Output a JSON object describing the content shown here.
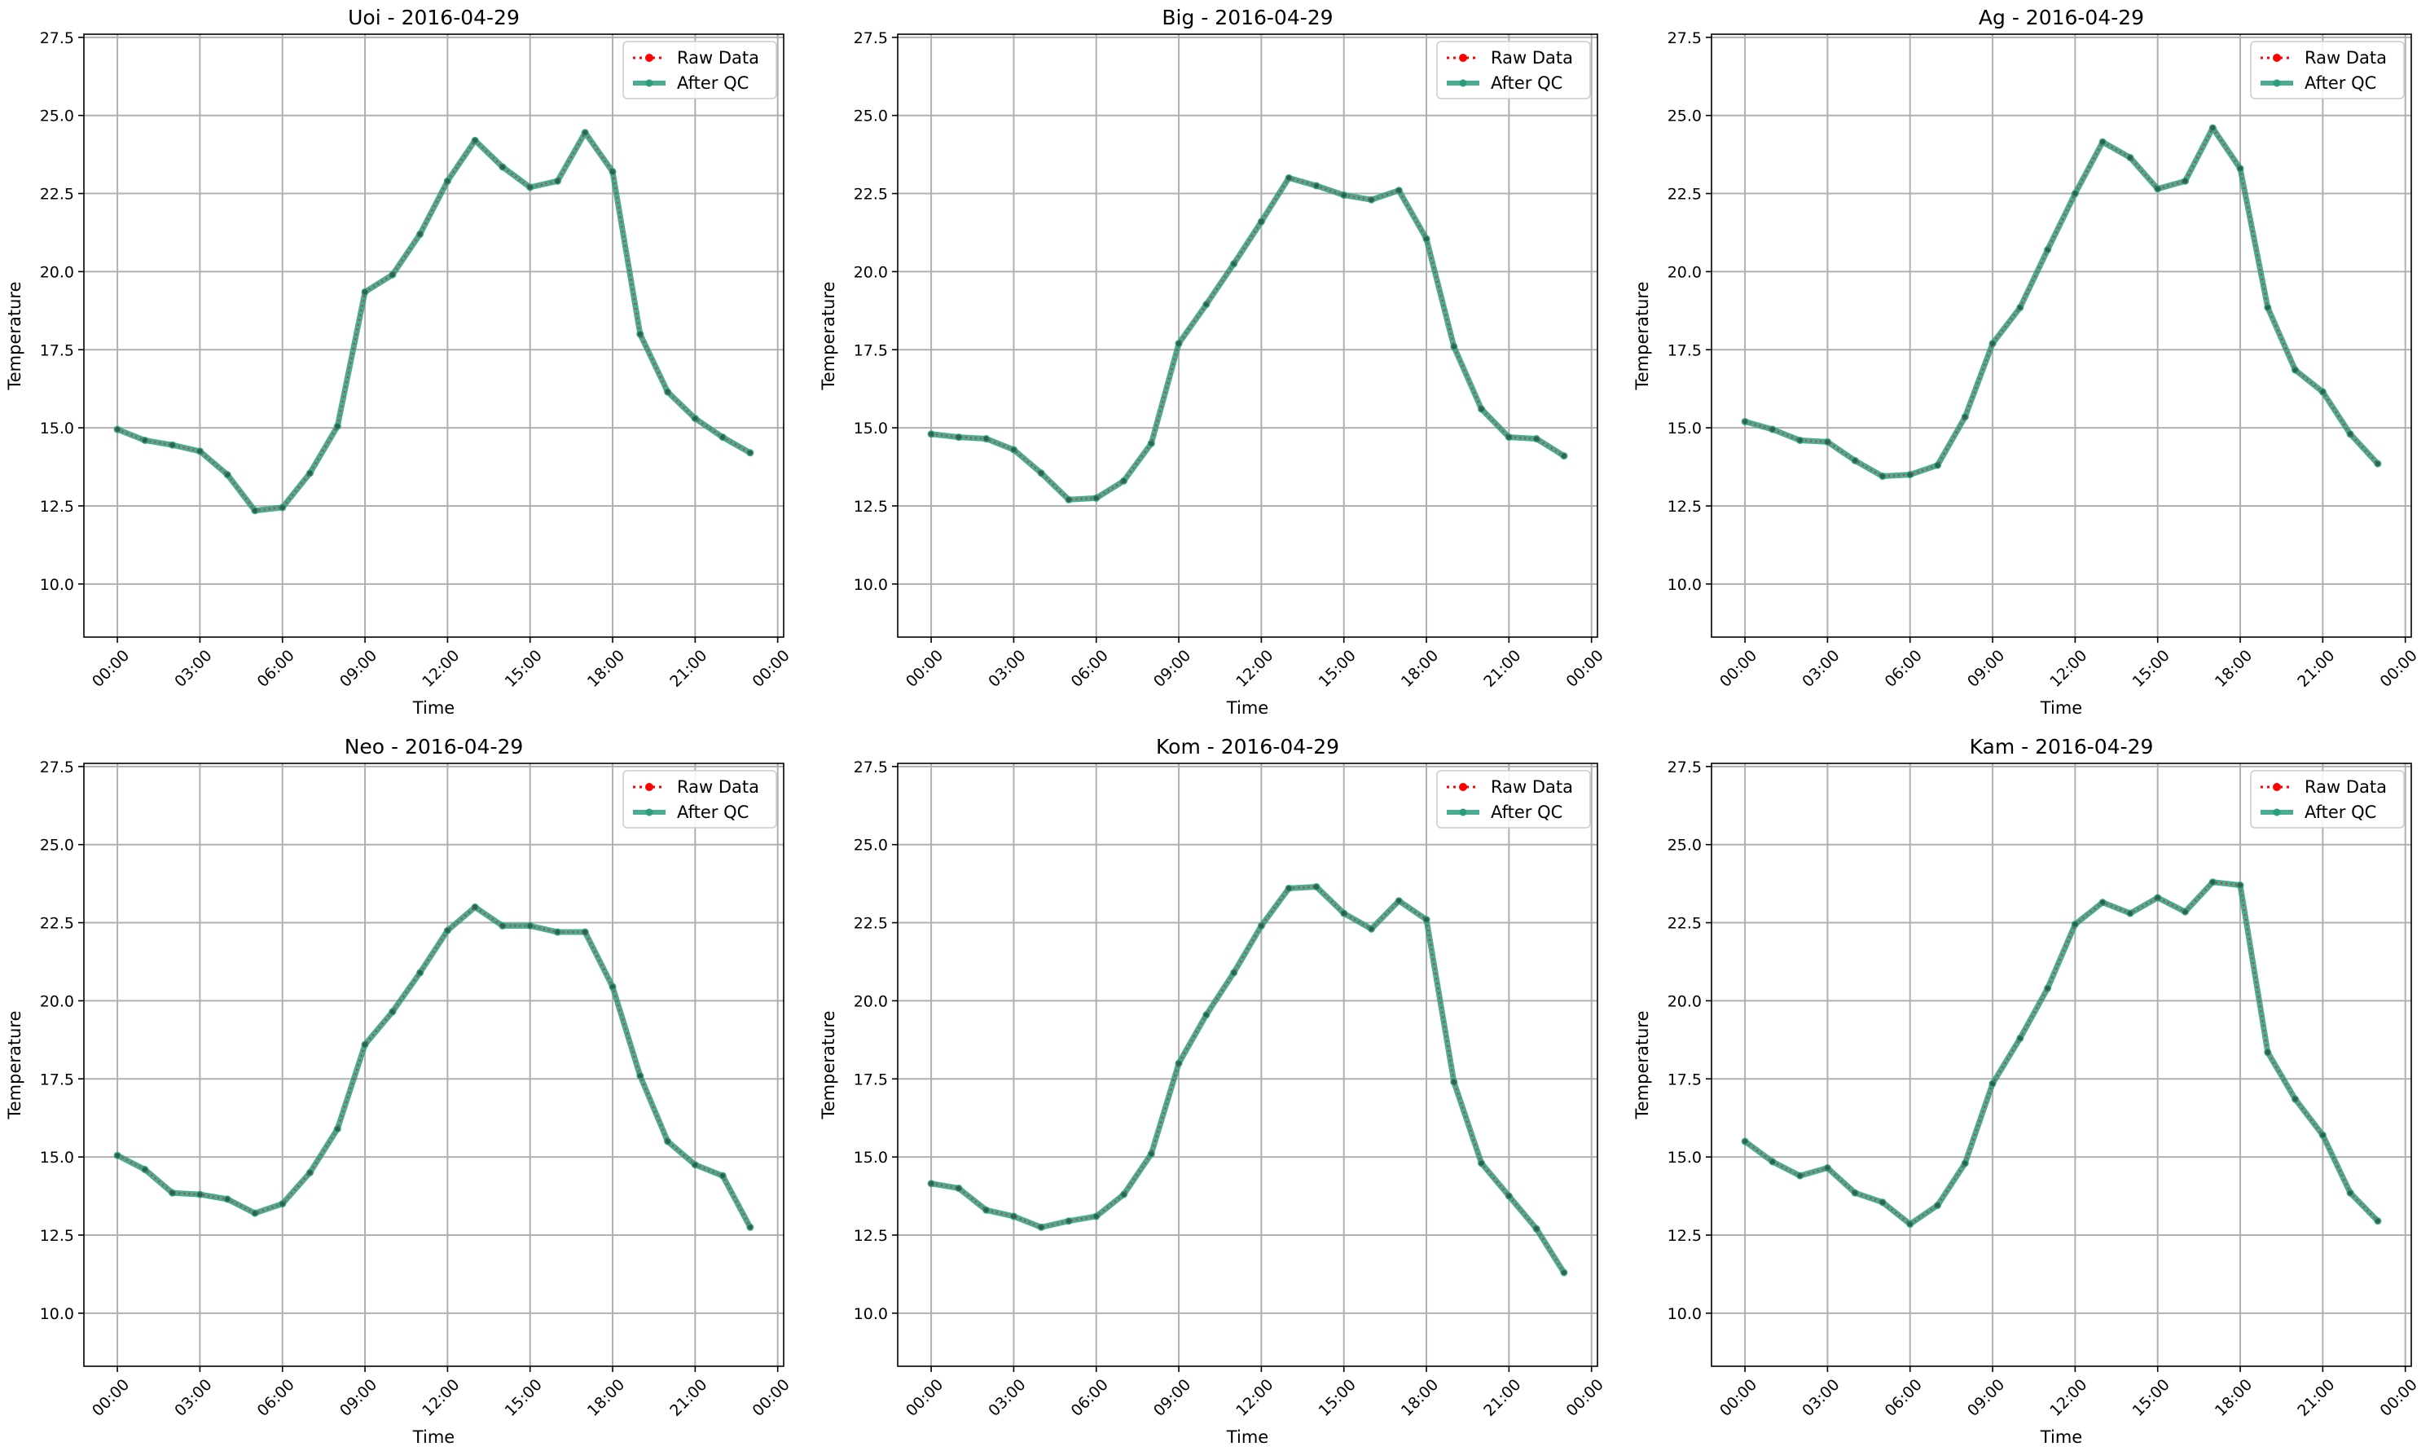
{
  "chart_data": [
    {
      "type": "line",
      "title": "Uoi - 2016-04-29",
      "xlabel": "Time",
      "ylabel": "Temperature",
      "ylim": [
        8.3,
        27.6
      ],
      "xlim": [
        "2016-04-28 22:47",
        "2016-04-30 00:13"
      ],
      "x_tick_labels": [
        "00:00",
        "03:00",
        "06:00",
        "09:00",
        "12:00",
        "15:00",
        "18:00",
        "21:00",
        "00:00"
      ],
      "y_tick_labels": [
        "10.0",
        "12.5",
        "15.0",
        "17.5",
        "20.0",
        "22.5",
        "25.0",
        "27.5"
      ],
      "y_ticks": [
        10.0,
        12.5,
        15.0,
        17.5,
        20.0,
        22.5,
        25.0,
        27.5
      ],
      "grid": true,
      "legend_position": "top-right",
      "x": [
        "00:00",
        "01:00",
        "02:00",
        "03:00",
        "04:00",
        "05:00",
        "06:00",
        "07:00",
        "08:00",
        "09:00",
        "10:00",
        "11:00",
        "12:00",
        "13:00",
        "14:00",
        "15:00",
        "16:00",
        "17:00",
        "18:00",
        "19:00",
        "20:00",
        "21:00",
        "22:00",
        "23:00"
      ],
      "series": [
        {
          "name": "Raw Data",
          "color": "#ff0000",
          "style": "dotted",
          "values": [
            14.95,
            14.6,
            14.45,
            14.25,
            13.5,
            12.35,
            12.45,
            13.55,
            15.05,
            19.35,
            19.9,
            21.2,
            22.9,
            24.2,
            23.35,
            22.7,
            22.9,
            24.45,
            23.2,
            18.0,
            16.15,
            15.3,
            14.7,
            14.2
          ]
        },
        {
          "name": "After QC",
          "color": "#2a9d7f",
          "style": "solid",
          "values": [
            14.95,
            14.6,
            14.45,
            14.25,
            13.5,
            12.35,
            12.45,
            13.55,
            15.05,
            19.35,
            19.9,
            21.2,
            22.9,
            24.2,
            23.35,
            22.7,
            22.9,
            24.45,
            23.2,
            18.0,
            16.15,
            15.3,
            14.7,
            14.2
          ]
        }
      ]
    },
    {
      "type": "line",
      "title": "Big - 2016-04-29",
      "xlabel": "Time",
      "ylabel": "Temperature",
      "ylim": [
        8.3,
        27.6
      ],
      "xlim": [
        "2016-04-28 22:47",
        "2016-04-30 00:13"
      ],
      "x_tick_labels": [
        "00:00",
        "03:00",
        "06:00",
        "09:00",
        "12:00",
        "15:00",
        "18:00",
        "21:00",
        "00:00"
      ],
      "y_tick_labels": [
        "10.0",
        "12.5",
        "15.0",
        "17.5",
        "20.0",
        "22.5",
        "25.0",
        "27.5"
      ],
      "y_ticks": [
        10.0,
        12.5,
        15.0,
        17.5,
        20.0,
        22.5,
        25.0,
        27.5
      ],
      "grid": true,
      "legend_position": "top-right",
      "x": [
        "00:00",
        "01:00",
        "02:00",
        "03:00",
        "04:00",
        "05:00",
        "06:00",
        "07:00",
        "08:00",
        "09:00",
        "10:00",
        "11:00",
        "12:00",
        "13:00",
        "14:00",
        "15:00",
        "16:00",
        "17:00",
        "18:00",
        "19:00",
        "20:00",
        "21:00",
        "22:00",
        "23:00"
      ],
      "series": [
        {
          "name": "Raw Data",
          "color": "#ff0000",
          "style": "dotted",
          "values": [
            14.8,
            14.7,
            14.65,
            14.3,
            13.55,
            12.7,
            12.75,
            13.3,
            14.5,
            17.7,
            18.95,
            20.25,
            21.6,
            23.0,
            22.75,
            22.45,
            22.3,
            22.6,
            21.05,
            17.6,
            15.6,
            14.7,
            14.65,
            14.1
          ]
        },
        {
          "name": "After QC",
          "color": "#2a9d7f",
          "style": "solid",
          "values": [
            14.8,
            14.7,
            14.65,
            14.3,
            13.55,
            12.7,
            12.75,
            13.3,
            14.5,
            17.7,
            18.95,
            20.25,
            21.6,
            23.0,
            22.75,
            22.45,
            22.3,
            22.6,
            21.05,
            17.6,
            15.6,
            14.7,
            14.65,
            14.1
          ]
        }
      ]
    },
    {
      "type": "line",
      "title": "Ag - 2016-04-29",
      "xlabel": "Time",
      "ylabel": "Temperature",
      "ylim": [
        8.3,
        27.6
      ],
      "xlim": [
        "2016-04-28 22:47",
        "2016-04-30 00:13"
      ],
      "x_tick_labels": [
        "00:00",
        "03:00",
        "06:00",
        "09:00",
        "12:00",
        "15:00",
        "18:00",
        "21:00",
        "00:00"
      ],
      "y_tick_labels": [
        "10.0",
        "12.5",
        "15.0",
        "17.5",
        "20.0",
        "22.5",
        "25.0",
        "27.5"
      ],
      "y_ticks": [
        10.0,
        12.5,
        15.0,
        17.5,
        20.0,
        22.5,
        25.0,
        27.5
      ],
      "grid": true,
      "legend_position": "top-right",
      "x": [
        "00:00",
        "01:00",
        "02:00",
        "03:00",
        "04:00",
        "05:00",
        "06:00",
        "07:00",
        "08:00",
        "09:00",
        "10:00",
        "11:00",
        "12:00",
        "13:00",
        "14:00",
        "15:00",
        "16:00",
        "17:00",
        "18:00",
        "19:00",
        "20:00",
        "21:00",
        "22:00",
        "23:00"
      ],
      "series": [
        {
          "name": "Raw Data",
          "color": "#ff0000",
          "style": "dotted",
          "values": [
            15.2,
            14.95,
            14.6,
            14.55,
            13.95,
            13.45,
            13.5,
            13.8,
            15.35,
            17.7,
            18.85,
            20.7,
            22.5,
            24.15,
            23.65,
            22.65,
            22.9,
            24.6,
            23.3,
            18.85,
            16.85,
            16.15,
            14.8,
            13.85
          ]
        },
        {
          "name": "After QC",
          "color": "#2a9d7f",
          "style": "solid",
          "values": [
            15.2,
            14.95,
            14.6,
            14.55,
            13.95,
            13.45,
            13.5,
            13.8,
            15.35,
            17.7,
            18.85,
            20.7,
            22.5,
            24.15,
            23.65,
            22.65,
            22.9,
            24.6,
            23.3,
            18.85,
            16.85,
            16.15,
            14.8,
            13.85
          ]
        }
      ]
    },
    {
      "type": "line",
      "title": "Neo - 2016-04-29",
      "xlabel": "Time",
      "ylabel": "Temperature",
      "ylim": [
        8.3,
        27.6
      ],
      "xlim": [
        "2016-04-28 22:47",
        "2016-04-30 00:13"
      ],
      "x_tick_labels": [
        "00:00",
        "03:00",
        "06:00",
        "09:00",
        "12:00",
        "15:00",
        "18:00",
        "21:00",
        "00:00"
      ],
      "y_tick_labels": [
        "10.0",
        "12.5",
        "15.0",
        "17.5",
        "20.0",
        "22.5",
        "25.0",
        "27.5"
      ],
      "y_ticks": [
        10.0,
        12.5,
        15.0,
        17.5,
        20.0,
        22.5,
        25.0,
        27.5
      ],
      "grid": true,
      "legend_position": "top-right",
      "x": [
        "00:00",
        "01:00",
        "02:00",
        "03:00",
        "04:00",
        "05:00",
        "06:00",
        "07:00",
        "08:00",
        "09:00",
        "10:00",
        "11:00",
        "12:00",
        "13:00",
        "14:00",
        "15:00",
        "16:00",
        "17:00",
        "18:00",
        "19:00",
        "20:00",
        "21:00",
        "22:00",
        "23:00"
      ],
      "series": [
        {
          "name": "Raw Data",
          "color": "#ff0000",
          "style": "dotted",
          "values": [
            15.05,
            14.6,
            13.85,
            13.8,
            13.65,
            13.2,
            13.5,
            14.5,
            15.9,
            18.6,
            19.65,
            20.9,
            22.25,
            23.0,
            22.4,
            22.4,
            22.2,
            22.2,
            20.45,
            17.6,
            15.5,
            14.75,
            14.4,
            12.75
          ]
        },
        {
          "name": "After QC",
          "color": "#2a9d7f",
          "style": "solid",
          "values": [
            15.05,
            14.6,
            13.85,
            13.8,
            13.65,
            13.2,
            13.5,
            14.5,
            15.9,
            18.6,
            19.65,
            20.9,
            22.25,
            23.0,
            22.4,
            22.4,
            22.2,
            22.2,
            20.45,
            17.6,
            15.5,
            14.75,
            14.4,
            12.75
          ]
        }
      ]
    },
    {
      "type": "line",
      "title": "Kom - 2016-04-29",
      "xlabel": "Time",
      "ylabel": "Temperature",
      "ylim": [
        8.3,
        27.6
      ],
      "xlim": [
        "2016-04-28 22:47",
        "2016-04-30 00:13"
      ],
      "x_tick_labels": [
        "00:00",
        "03:00",
        "06:00",
        "09:00",
        "12:00",
        "15:00",
        "18:00",
        "21:00",
        "00:00"
      ],
      "y_tick_labels": [
        "10.0",
        "12.5",
        "15.0",
        "17.5",
        "20.0",
        "22.5",
        "25.0",
        "27.5"
      ],
      "y_ticks": [
        10.0,
        12.5,
        15.0,
        17.5,
        20.0,
        22.5,
        25.0,
        27.5
      ],
      "grid": true,
      "legend_position": "top-right",
      "x": [
        "00:00",
        "01:00",
        "02:00",
        "03:00",
        "04:00",
        "05:00",
        "06:00",
        "07:00",
        "08:00",
        "09:00",
        "10:00",
        "11:00",
        "12:00",
        "13:00",
        "14:00",
        "15:00",
        "16:00",
        "17:00",
        "18:00",
        "19:00",
        "20:00",
        "21:00",
        "22:00",
        "23:00"
      ],
      "series": [
        {
          "name": "Raw Data",
          "color": "#ff0000",
          "style": "dotted",
          "values": [
            14.15,
            14.0,
            13.3,
            13.1,
            12.75,
            12.95,
            13.1,
            13.8,
            15.1,
            18.0,
            19.55,
            20.9,
            22.4,
            23.6,
            23.65,
            22.8,
            22.3,
            23.2,
            22.6,
            17.4,
            14.8,
            13.75,
            12.7,
            11.3
          ]
        },
        {
          "name": "After QC",
          "color": "#2a9d7f",
          "style": "solid",
          "values": [
            14.15,
            14.0,
            13.3,
            13.1,
            12.75,
            12.95,
            13.1,
            13.8,
            15.1,
            18.0,
            19.55,
            20.9,
            22.4,
            23.6,
            23.65,
            22.8,
            22.3,
            23.2,
            22.6,
            17.4,
            14.8,
            13.75,
            12.7,
            11.3
          ]
        }
      ]
    },
    {
      "type": "line",
      "title": "Kam - 2016-04-29",
      "xlabel": "Time",
      "ylabel": "Temperature",
      "ylim": [
        8.3,
        27.6
      ],
      "xlim": [
        "2016-04-28 22:47",
        "2016-04-30 00:13"
      ],
      "x_tick_labels": [
        "00:00",
        "03:00",
        "06:00",
        "09:00",
        "12:00",
        "15:00",
        "18:00",
        "21:00",
        "00:00"
      ],
      "y_tick_labels": [
        "10.0",
        "12.5",
        "15.0",
        "17.5",
        "20.0",
        "22.5",
        "25.0",
        "27.5"
      ],
      "y_ticks": [
        10.0,
        12.5,
        15.0,
        17.5,
        20.0,
        22.5,
        25.0,
        27.5
      ],
      "grid": true,
      "legend_position": "top-right",
      "x": [
        "00:00",
        "01:00",
        "02:00",
        "03:00",
        "04:00",
        "05:00",
        "06:00",
        "07:00",
        "08:00",
        "09:00",
        "10:00",
        "11:00",
        "12:00",
        "13:00",
        "14:00",
        "15:00",
        "16:00",
        "17:00",
        "18:00",
        "19:00",
        "20:00",
        "21:00",
        "22:00",
        "23:00"
      ],
      "series": [
        {
          "name": "Raw Data",
          "color": "#ff0000",
          "style": "dotted",
          "values": [
            15.5,
            14.85,
            14.4,
            14.65,
            13.85,
            13.55,
            12.85,
            13.45,
            14.8,
            17.35,
            18.8,
            20.4,
            22.45,
            23.15,
            22.8,
            23.3,
            22.85,
            23.8,
            23.7,
            18.35,
            16.85,
            15.7,
            13.85,
            12.95
          ]
        },
        {
          "name": "After QC",
          "color": "#2a9d7f",
          "style": "solid",
          "values": [
            15.5,
            14.85,
            14.4,
            14.65,
            13.85,
            13.55,
            12.85,
            13.45,
            14.8,
            17.35,
            18.8,
            20.4,
            22.45,
            23.15,
            22.8,
            23.3,
            22.85,
            23.8,
            23.7,
            18.35,
            16.85,
            15.7,
            13.85,
            12.95
          ]
        }
      ]
    }
  ]
}
